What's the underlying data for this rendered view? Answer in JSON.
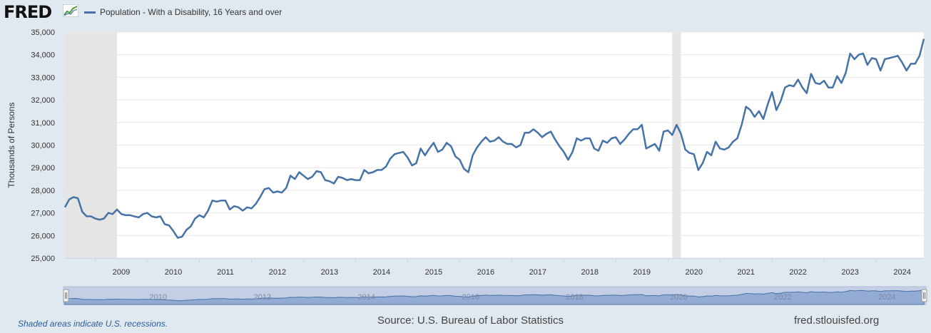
{
  "header": {
    "logo_text": "FRED",
    "logo_icon": "line-graph-icon",
    "legend_label": "Population - With a Disability, 16 Years and over"
  },
  "footer": {
    "recession_note": "Shaded areas indicate U.S. recessions.",
    "source": "Source: U.S. Bureau of Labor Statistics",
    "url": "fred.stlouisfed.org"
  },
  "colors": {
    "line": "#4572a7",
    "recession_shade": "#e5e5e5",
    "page_background": "#e1e9f0",
    "plot_background": "#ffffff"
  },
  "chart_data": {
    "type": "line",
    "ylabel": "Thousands of Persons",
    "ylim": [
      25000,
      35000
    ],
    "y_ticks": [
      "25,000",
      "26,000",
      "27,000",
      "28,000",
      "29,000",
      "30,000",
      "31,000",
      "32,000",
      "33,000",
      "34,000",
      "35,000"
    ],
    "x_ticks": [
      "2009",
      "2010",
      "2011",
      "2012",
      "2013",
      "2014",
      "2015",
      "2016",
      "2017",
      "2018",
      "2019",
      "2020",
      "2021",
      "2022",
      "2023",
      "2024"
    ],
    "navigator_labels": [
      "2010",
      "2012",
      "2014",
      "2016",
      "2018",
      "2020",
      "2022",
      "2024"
    ],
    "recessions": [
      {
        "start": "2008-06",
        "end": "2009-06"
      },
      {
        "start": "2020-02",
        "end": "2020-04"
      }
    ],
    "grid": true,
    "legend_position": "top-left",
    "series": [
      {
        "name": "Population - With a Disability, 16 Years and over",
        "points": [
          [
            "2008-06",
            27250
          ],
          [
            "2008-07",
            27600
          ],
          [
            "2008-08",
            27700
          ],
          [
            "2008-09",
            27650
          ],
          [
            "2008-10",
            27050
          ],
          [
            "2008-11",
            26850
          ],
          [
            "2008-12",
            26850
          ],
          [
            "2009-01",
            26750
          ],
          [
            "2009-02",
            26700
          ],
          [
            "2009-03",
            26750
          ],
          [
            "2009-04",
            27000
          ],
          [
            "2009-05",
            26950
          ],
          [
            "2009-06",
            27150
          ],
          [
            "2009-07",
            26950
          ],
          [
            "2009-08",
            26900
          ],
          [
            "2009-09",
            26900
          ],
          [
            "2009-10",
            26850
          ],
          [
            "2009-11",
            26800
          ],
          [
            "2009-12",
            26950
          ],
          [
            "2010-01",
            27000
          ],
          [
            "2010-02",
            26850
          ],
          [
            "2010-03",
            26800
          ],
          [
            "2010-04",
            26850
          ],
          [
            "2010-05",
            26500
          ],
          [
            "2010-06",
            26450
          ],
          [
            "2010-07",
            26200
          ],
          [
            "2010-08",
            25900
          ],
          [
            "2010-09",
            25950
          ],
          [
            "2010-10",
            26250
          ],
          [
            "2010-11",
            26400
          ],
          [
            "2010-12",
            26750
          ],
          [
            "2011-01",
            26900
          ],
          [
            "2011-02",
            26800
          ],
          [
            "2011-03",
            27100
          ],
          [
            "2011-04",
            27550
          ],
          [
            "2011-05",
            27500
          ],
          [
            "2011-06",
            27550
          ],
          [
            "2011-07",
            27550
          ],
          [
            "2011-08",
            27150
          ],
          [
            "2011-09",
            27300
          ],
          [
            "2011-10",
            27250
          ],
          [
            "2011-11",
            27100
          ],
          [
            "2011-12",
            27250
          ],
          [
            "2012-01",
            27200
          ],
          [
            "2012-02",
            27400
          ],
          [
            "2012-03",
            27700
          ],
          [
            "2012-04",
            28050
          ],
          [
            "2012-05",
            28100
          ],
          [
            "2012-06",
            27900
          ],
          [
            "2012-07",
            27950
          ],
          [
            "2012-08",
            27900
          ],
          [
            "2012-09",
            28100
          ],
          [
            "2012-10",
            28650
          ],
          [
            "2012-11",
            28500
          ],
          [
            "2012-12",
            28800
          ],
          [
            "2013-01",
            28650
          ],
          [
            "2013-02",
            28500
          ],
          [
            "2013-03",
            28600
          ],
          [
            "2013-04",
            28850
          ],
          [
            "2013-05",
            28800
          ],
          [
            "2013-06",
            28450
          ],
          [
            "2013-07",
            28400
          ],
          [
            "2013-08",
            28300
          ],
          [
            "2013-09",
            28600
          ],
          [
            "2013-10",
            28550
          ],
          [
            "2013-11",
            28450
          ],
          [
            "2013-12",
            28500
          ],
          [
            "2014-01",
            28450
          ],
          [
            "2014-02",
            28450
          ],
          [
            "2014-03",
            28900
          ],
          [
            "2014-04",
            28750
          ],
          [
            "2014-05",
            28800
          ],
          [
            "2014-06",
            28900
          ],
          [
            "2014-07",
            28900
          ],
          [
            "2014-08",
            29050
          ],
          [
            "2014-09",
            29400
          ],
          [
            "2014-10",
            29600
          ],
          [
            "2014-11",
            29650
          ],
          [
            "2014-12",
            29700
          ],
          [
            "2015-01",
            29450
          ],
          [
            "2015-02",
            29100
          ],
          [
            "2015-03",
            29200
          ],
          [
            "2015-04",
            29850
          ],
          [
            "2015-05",
            29550
          ],
          [
            "2015-06",
            29850
          ],
          [
            "2015-07",
            30100
          ],
          [
            "2015-08",
            29700
          ],
          [
            "2015-09",
            29800
          ],
          [
            "2015-10",
            30100
          ],
          [
            "2015-11",
            29950
          ],
          [
            "2015-12",
            29500
          ],
          [
            "2016-01",
            29350
          ],
          [
            "2016-02",
            28950
          ],
          [
            "2016-03",
            28800
          ],
          [
            "2016-04",
            29550
          ],
          [
            "2016-05",
            29900
          ],
          [
            "2016-06",
            30150
          ],
          [
            "2016-07",
            30350
          ],
          [
            "2016-08",
            30150
          ],
          [
            "2016-09",
            30200
          ],
          [
            "2016-10",
            30350
          ],
          [
            "2016-11",
            30150
          ],
          [
            "2016-12",
            30050
          ],
          [
            "2017-01",
            30050
          ],
          [
            "2017-02",
            29900
          ],
          [
            "2017-03",
            30000
          ],
          [
            "2017-04",
            30550
          ],
          [
            "2017-05",
            30550
          ],
          [
            "2017-06",
            30700
          ],
          [
            "2017-07",
            30550
          ],
          [
            "2017-08",
            30350
          ],
          [
            "2017-09",
            30500
          ],
          [
            "2017-10",
            30600
          ],
          [
            "2017-11",
            30250
          ],
          [
            "2017-12",
            29950
          ],
          [
            "2018-01",
            29700
          ],
          [
            "2018-02",
            29350
          ],
          [
            "2018-03",
            29700
          ],
          [
            "2018-04",
            30300
          ],
          [
            "2018-05",
            30200
          ],
          [
            "2018-06",
            30300
          ],
          [
            "2018-07",
            30300
          ],
          [
            "2018-08",
            29850
          ],
          [
            "2018-09",
            29750
          ],
          [
            "2018-10",
            30200
          ],
          [
            "2018-11",
            30100
          ],
          [
            "2018-12",
            30300
          ],
          [
            "2019-01",
            30350
          ],
          [
            "2019-02",
            30050
          ],
          [
            "2019-03",
            30250
          ],
          [
            "2019-04",
            30500
          ],
          [
            "2019-05",
            30700
          ],
          [
            "2019-06",
            30700
          ],
          [
            "2019-07",
            30900
          ],
          [
            "2019-08",
            29850
          ],
          [
            "2019-09",
            29950
          ],
          [
            "2019-10",
            30050
          ],
          [
            "2019-11",
            29750
          ],
          [
            "2019-12",
            30600
          ],
          [
            "2020-01",
            30650
          ],
          [
            "2020-02",
            30450
          ],
          [
            "2020-03",
            30900
          ],
          [
            "2020-04",
            30500
          ],
          [
            "2020-05",
            29800
          ],
          [
            "2020-06",
            29650
          ],
          [
            "2020-07",
            29600
          ],
          [
            "2020-08",
            28900
          ],
          [
            "2020-09",
            29200
          ],
          [
            "2020-10",
            29700
          ],
          [
            "2020-11",
            29550
          ],
          [
            "2020-12",
            30150
          ],
          [
            "2021-01",
            29850
          ],
          [
            "2021-02",
            29800
          ],
          [
            "2021-03",
            29900
          ],
          [
            "2021-04",
            30150
          ],
          [
            "2021-05",
            30300
          ],
          [
            "2021-06",
            30900
          ],
          [
            "2021-07",
            31700
          ],
          [
            "2021-08",
            31550
          ],
          [
            "2021-09",
            31250
          ],
          [
            "2021-10",
            31500
          ],
          [
            "2021-11",
            31150
          ],
          [
            "2021-12",
            31800
          ],
          [
            "2022-01",
            32350
          ],
          [
            "2022-02",
            31550
          ],
          [
            "2022-03",
            31950
          ],
          [
            "2022-04",
            32550
          ],
          [
            "2022-05",
            32650
          ],
          [
            "2022-06",
            32600
          ],
          [
            "2022-07",
            32900
          ],
          [
            "2022-08",
            32550
          ],
          [
            "2022-09",
            32300
          ],
          [
            "2022-10",
            33150
          ],
          [
            "2022-11",
            32750
          ],
          [
            "2022-12",
            32700
          ],
          [
            "2023-01",
            32850
          ],
          [
            "2023-02",
            32550
          ],
          [
            "2023-03",
            32550
          ],
          [
            "2023-04",
            33050
          ],
          [
            "2023-05",
            32750
          ],
          [
            "2023-06",
            33200
          ],
          [
            "2023-07",
            34050
          ],
          [
            "2023-08",
            33800
          ],
          [
            "2023-09",
            34000
          ],
          [
            "2023-10",
            34050
          ],
          [
            "2023-11",
            33550
          ],
          [
            "2023-12",
            33850
          ],
          [
            "2024-01",
            33800
          ],
          [
            "2024-02",
            33300
          ],
          [
            "2024-03",
            33800
          ],
          [
            "2024-04",
            33850
          ],
          [
            "2024-05",
            33900
          ],
          [
            "2024-06",
            33950
          ],
          [
            "2024-07",
            33650
          ],
          [
            "2024-08",
            33300
          ],
          [
            "2024-09",
            33600
          ],
          [
            "2024-10",
            33600
          ],
          [
            "2024-11",
            33950
          ],
          [
            "2024-12",
            34700
          ]
        ]
      }
    ]
  }
}
